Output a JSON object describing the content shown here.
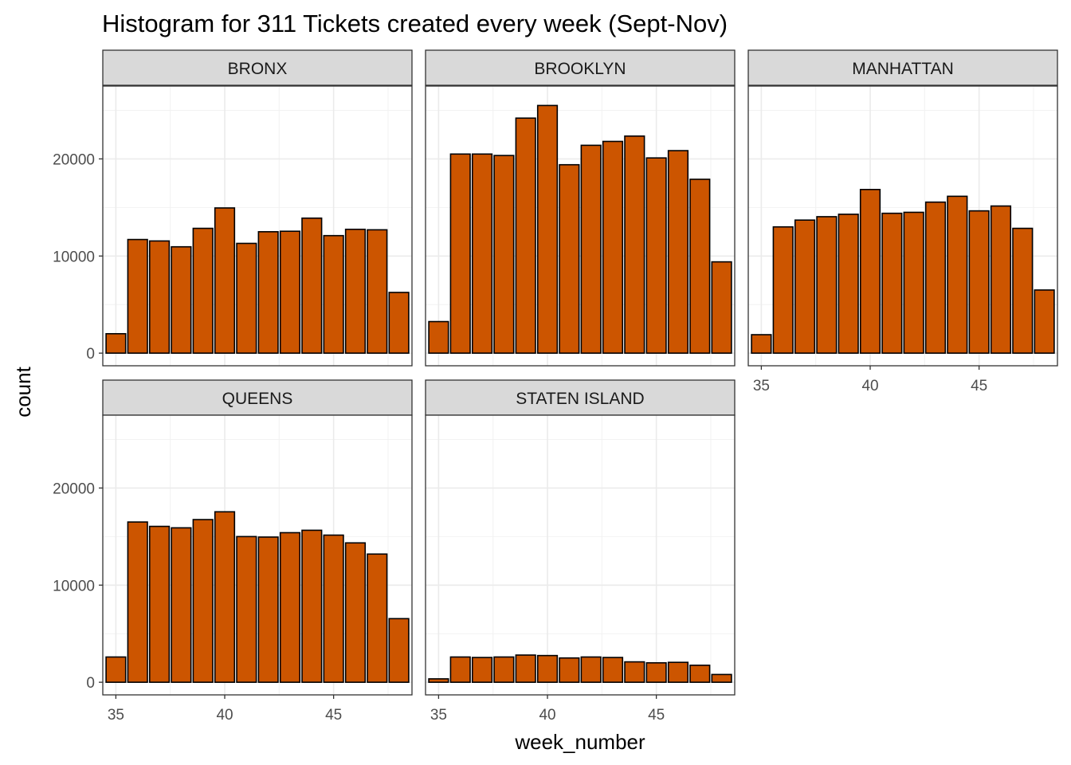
{
  "chart_data": {
    "type": "bar",
    "title": "Histogram for 311 Tickets created every week (Sept-Nov)",
    "xlabel": "week_number",
    "ylabel": "count",
    "x": [
      35,
      36,
      37,
      38,
      39,
      40,
      41,
      42,
      43,
      44,
      45,
      46,
      47,
      48
    ],
    "xlim": [
      34.4,
      48.6
    ],
    "ylim": [
      -1300,
      27500
    ],
    "x_ticks": [
      35,
      40,
      45
    ],
    "y_ticks": [
      0,
      10000,
      20000
    ],
    "y_tick_labels": [
      "0",
      "10000",
      "20000"
    ],
    "grid": true,
    "bar_fill": "#CC5500",
    "bar_stroke": "#000000",
    "strip_fill": "#D9D9D9",
    "panels": [
      {
        "name": "BRONX",
        "values": [
          2000,
          11700,
          11550,
          10950,
          12850,
          14950,
          11300,
          12500,
          12550,
          13900,
          12100,
          12750,
          12700,
          6250
        ]
      },
      {
        "name": "BROOKLYN",
        "values": [
          3250,
          20500,
          20500,
          20350,
          24200,
          25500,
          19400,
          21400,
          21800,
          22350,
          20100,
          20850,
          17900,
          9400
        ]
      },
      {
        "name": "MANHATTAN",
        "values": [
          1900,
          13000,
          13700,
          14050,
          14300,
          16850,
          14400,
          14500,
          15550,
          16150,
          14650,
          15150,
          12850,
          6500
        ]
      },
      {
        "name": "QUEENS",
        "values": [
          2600,
          16500,
          16050,
          15900,
          16750,
          17550,
          15000,
          14950,
          15400,
          15650,
          15150,
          14350,
          13200,
          6550
        ]
      },
      {
        "name": "STATEN ISLAND",
        "values": [
          350,
          2600,
          2550,
          2600,
          2800,
          2750,
          2500,
          2600,
          2550,
          2100,
          2000,
          2050,
          1750,
          800
        ]
      }
    ]
  }
}
